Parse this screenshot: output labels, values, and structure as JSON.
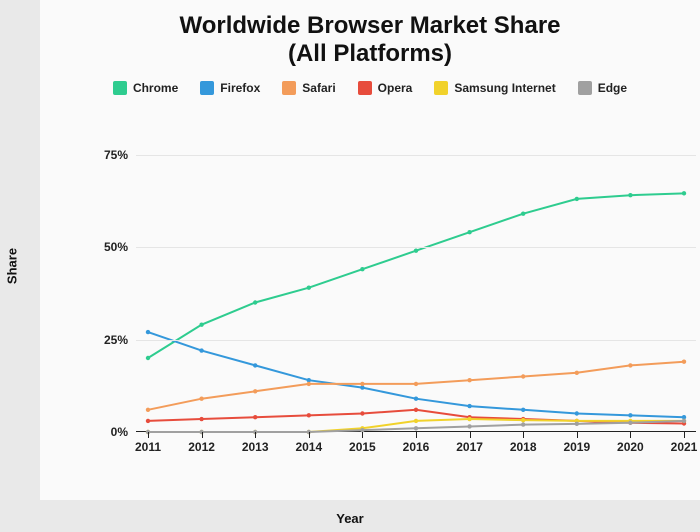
{
  "chart": {
    "type": "line",
    "title_line1": "Worldwide Browser Market Share",
    "title_line2": "(All Platforms)",
    "title_fontsize": 24,
    "y_label": "Share",
    "x_label": "Year",
    "axis_label_fontsize": 13,
    "background_color": "#fafafa",
    "outer_background": "#e9e9e9",
    "grid_color": "#e5e5e5",
    "axis_color": "#222222",
    "tick_fontsize": 12,
    "legend_fontsize": 12,
    "line_width": 2,
    "marker_radius": 2.2,
    "x": {
      "categories": [
        "2011",
        "2012",
        "2013",
        "2014",
        "2015",
        "2016",
        "2017",
        "2018",
        "2019",
        "2020",
        "2021"
      ]
    },
    "y": {
      "min": 0,
      "max": 80,
      "ticks": [
        0,
        25,
        50,
        75
      ],
      "unit": "%"
    },
    "series": [
      {
        "name": "Chrome",
        "color": "#2ecc8f",
        "values": [
          20,
          29,
          35,
          39,
          44,
          49,
          54,
          59,
          63,
          64,
          64.5
        ]
      },
      {
        "name": "Firefox",
        "color": "#3498db",
        "values": [
          27,
          22,
          18,
          14,
          12,
          9,
          7,
          6,
          5,
          4.5,
          4
        ]
      },
      {
        "name": "Safari",
        "color": "#f39c5a",
        "values": [
          6,
          9,
          11,
          13,
          13,
          13,
          14,
          15,
          16,
          18,
          19
        ]
      },
      {
        "name": "Opera",
        "color": "#e74c3c",
        "values": [
          3,
          3.5,
          4,
          4.5,
          5,
          6,
          4,
          3.5,
          3,
          2.5,
          2.3
        ]
      },
      {
        "name": "Samsung Internet",
        "color": "#f1d22b",
        "values": [
          0,
          0,
          0,
          0,
          1,
          3,
          3.5,
          3.2,
          3,
          3,
          3
        ]
      },
      {
        "name": "Edge",
        "color": "#a0a0a0",
        "values": [
          0,
          0,
          0,
          0,
          0.5,
          1,
          1.5,
          2,
          2.2,
          2.5,
          3
        ]
      }
    ]
  }
}
